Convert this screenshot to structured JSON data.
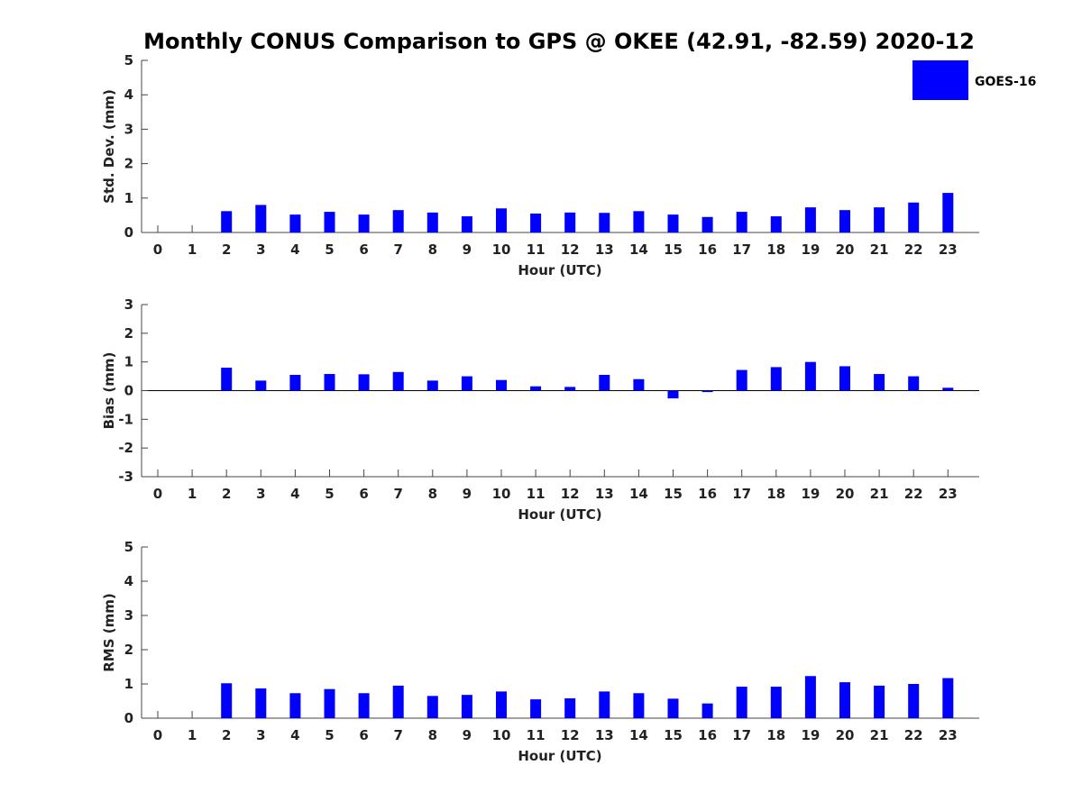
{
  "title": "Monthly CONUS Comparison to GPS @ OKEE (42.91, -82.59) 2020-12",
  "legend": {
    "label": "GOES-16",
    "color": "#0000ff",
    "position": "top-right"
  },
  "bar_color": "#0000ff",
  "chart_data": [
    {
      "type": "bar",
      "xlabel": "Hour (UTC)",
      "ylabel": "Std. Dev. (mm)",
      "ylim": [
        0,
        5
      ],
      "yticks": [
        0,
        1,
        2,
        3,
        4,
        5
      ],
      "categories": [
        0,
        1,
        2,
        3,
        4,
        5,
        6,
        7,
        8,
        9,
        10,
        11,
        12,
        13,
        14,
        15,
        16,
        17,
        18,
        19,
        20,
        21,
        22,
        23
      ],
      "series": [
        {
          "name": "GOES-16",
          "values": [
            null,
            null,
            0.62,
            0.8,
            0.52,
            0.6,
            0.52,
            0.65,
            0.58,
            0.47,
            0.7,
            0.55,
            0.58,
            0.57,
            0.62,
            0.52,
            0.45,
            0.6,
            0.47,
            0.73,
            0.65,
            0.73,
            0.87,
            1.15
          ]
        }
      ]
    },
    {
      "type": "bar",
      "xlabel": "Hour (UTC)",
      "ylabel": "Bias (mm)",
      "ylim": [
        -3,
        3
      ],
      "yticks": [
        -3,
        -2,
        -1,
        0,
        1,
        2,
        3
      ],
      "categories": [
        0,
        1,
        2,
        3,
        4,
        5,
        6,
        7,
        8,
        9,
        10,
        11,
        12,
        13,
        14,
        15,
        16,
        17,
        18,
        19,
        20,
        21,
        22,
        23
      ],
      "series": [
        {
          "name": "GOES-16",
          "values": [
            null,
            null,
            0.8,
            0.35,
            0.55,
            0.58,
            0.57,
            0.65,
            0.35,
            0.5,
            0.37,
            0.15,
            0.13,
            0.55,
            0.4,
            -0.27,
            -0.05,
            0.72,
            0.82,
            1.0,
            0.85,
            0.58,
            0.5,
            0.1
          ]
        }
      ]
    },
    {
      "type": "bar",
      "xlabel": "Hour (UTC)",
      "ylabel": "RMS (mm)",
      "ylim": [
        0,
        5
      ],
      "yticks": [
        0,
        1,
        2,
        3,
        4,
        5
      ],
      "categories": [
        0,
        1,
        2,
        3,
        4,
        5,
        6,
        7,
        8,
        9,
        10,
        11,
        12,
        13,
        14,
        15,
        16,
        17,
        18,
        19,
        20,
        21,
        22,
        23
      ],
      "series": [
        {
          "name": "GOES-16",
          "values": [
            null,
            null,
            1.02,
            0.87,
            0.73,
            0.85,
            0.73,
            0.95,
            0.65,
            0.68,
            0.78,
            0.55,
            0.58,
            0.78,
            0.73,
            0.57,
            0.43,
            0.92,
            0.92,
            1.23,
            1.05,
            0.95,
            1.0,
            1.17
          ]
        }
      ]
    }
  ]
}
